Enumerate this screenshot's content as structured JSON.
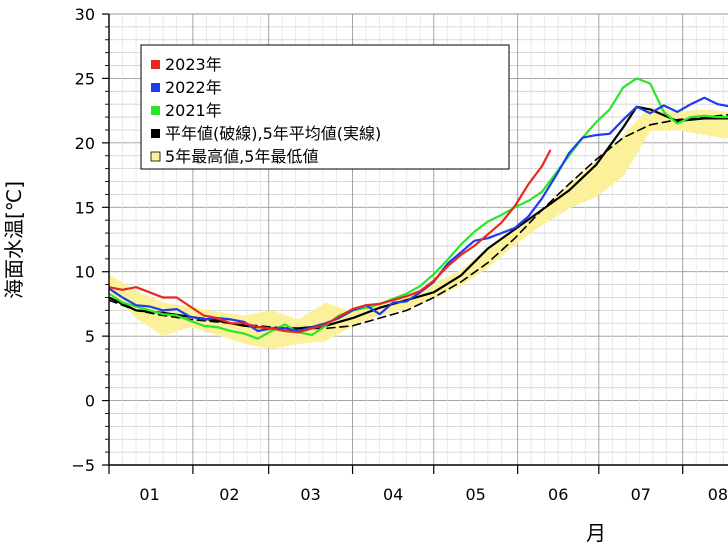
{
  "chart_data": {
    "type": "line",
    "xlabel": "月",
    "ylabel": "海面水温[℃]",
    "ylim": [
      -5,
      30
    ],
    "y_ticks": [
      "30",
      "25",
      "20",
      "15",
      "10",
      "5",
      "0",
      "−5"
    ],
    "x_ticks": [
      "01",
      "02",
      "03",
      "04",
      "05",
      "06",
      "07",
      "08"
    ],
    "legend": [
      {
        "label": "2023年",
        "color": "#e8281e"
      },
      {
        "label": "2022年",
        "color": "#1e3cf0"
      },
      {
        "label": "2021年",
        "color": "#28e628"
      },
      {
        "label": "平年値(破線),5年平均値(実線)",
        "color": "#000000"
      },
      {
        "label": "5年最高値,5年最低値",
        "color": "#fbf19a"
      }
    ],
    "band": {
      "name": "5年最高値,5年最低値",
      "x": [
        0,
        10,
        20,
        30,
        40,
        50,
        60,
        70,
        80,
        90,
        100,
        110,
        120,
        130,
        140,
        150,
        160,
        170,
        180,
        190,
        200,
        210,
        220,
        230
      ],
      "upper": [
        9.8,
        8.5,
        7.6,
        7.3,
        6.9,
        6.6,
        7.0,
        6.3,
        7.6,
        6.9,
        7.4,
        8.1,
        9.1,
        10.1,
        11.9,
        13.4,
        14.8,
        16.8,
        18.6,
        20.6,
        22.8,
        22.4,
        22.6,
        22.4
      ],
      "lower": [
        8.6,
        6.4,
        5.0,
        5.7,
        5.1,
        4.4,
        4.0,
        4.4,
        4.6,
        5.8,
        6.6,
        7.1,
        7.9,
        8.9,
        10.3,
        12.1,
        13.6,
        14.9,
        15.8,
        17.4,
        20.9,
        21.0,
        20.6,
        20.3
      ]
    },
    "series": [
      {
        "name": "2023年",
        "color": "#e8281e",
        "x": [
          0,
          5,
          10,
          15,
          20,
          25,
          30,
          35,
          40,
          45,
          50,
          55,
          60,
          65,
          70,
          75,
          80,
          85,
          90,
          95,
          100,
          105,
          110,
          115,
          120,
          125,
          130,
          135,
          140,
          145,
          150,
          155,
          160,
          163
        ],
        "y": [
          8.8,
          8.6,
          8.8,
          8.4,
          8.0,
          8.0,
          7.3,
          6.6,
          6.4,
          6.0,
          6.0,
          5.7,
          5.6,
          5.4,
          5.3,
          5.6,
          5.9,
          6.5,
          7.1,
          7.4,
          7.5,
          7.8,
          8.1,
          8.5,
          9.3,
          10.4,
          11.3,
          12.0,
          12.9,
          13.8,
          15.1,
          16.8,
          18.2,
          19.4
        ]
      },
      {
        "name": "2022年",
        "color": "#1e3cf0",
        "x": [
          0,
          5,
          10,
          15,
          20,
          25,
          30,
          35,
          40,
          45,
          50,
          55,
          60,
          65,
          70,
          75,
          80,
          85,
          90,
          95,
          100,
          105,
          110,
          115,
          120,
          125,
          130,
          135,
          140,
          145,
          150,
          155,
          160,
          165,
          170,
          175,
          180,
          185,
          190,
          195,
          200,
          205,
          210,
          215,
          220,
          225,
          230
        ],
        "y": [
          8.7,
          8.0,
          7.4,
          7.3,
          7.0,
          7.1,
          6.5,
          6.3,
          6.4,
          6.3,
          6.1,
          5.4,
          5.6,
          5.6,
          5.4,
          5.7,
          6.0,
          6.4,
          7.0,
          7.4,
          6.7,
          7.6,
          7.7,
          8.4,
          9.2,
          10.6,
          11.5,
          12.4,
          12.6,
          13.0,
          13.4,
          14.3,
          15.7,
          17.4,
          19.2,
          20.4,
          20.6,
          20.7,
          21.8,
          22.8,
          22.3,
          22.9,
          22.4,
          23.0,
          23.5,
          23.0,
          22.8
        ]
      },
      {
        "name": "2021年",
        "color": "#28e628",
        "x": [
          0,
          5,
          10,
          15,
          20,
          25,
          30,
          35,
          40,
          45,
          50,
          55,
          60,
          65,
          70,
          75,
          80,
          85,
          90,
          95,
          100,
          105,
          110,
          115,
          120,
          125,
          130,
          135,
          140,
          145,
          150,
          155,
          160,
          165,
          170,
          175,
          180,
          185,
          190,
          195,
          200,
          205,
          210,
          215,
          220,
          225,
          230
        ],
        "y": [
          8.3,
          7.6,
          7.3,
          7.0,
          6.7,
          6.6,
          6.2,
          5.8,
          5.7,
          5.4,
          5.2,
          4.8,
          5.4,
          5.9,
          5.3,
          5.1,
          5.8,
          6.6,
          7.0,
          7.2,
          7.5,
          7.9,
          8.3,
          8.9,
          9.8,
          10.9,
          12.1,
          13.1,
          13.9,
          14.4,
          15.0,
          15.5,
          16.2,
          17.6,
          19.0,
          20.4,
          21.6,
          22.6,
          24.3,
          25.0,
          24.6,
          22.4,
          21.5,
          22.0,
          22.1,
          22.0,
          22.0
        ]
      },
      {
        "name": "5年平均値",
        "color": "#000000",
        "dash": false,
        "x": [
          0,
          10,
          20,
          30,
          40,
          50,
          60,
          70,
          80,
          90,
          100,
          110,
          120,
          130,
          140,
          150,
          160,
          170,
          180,
          190,
          195,
          200,
          210,
          220,
          230
        ],
        "y": [
          8.0,
          7.0,
          6.8,
          6.5,
          6.2,
          5.8,
          5.6,
          5.6,
          5.8,
          6.4,
          7.2,
          7.8,
          8.4,
          9.7,
          11.8,
          13.3,
          14.8,
          16.3,
          18.3,
          21.2,
          22.8,
          22.6,
          21.7,
          21.9,
          21.9
        ]
      },
      {
        "name": "平年値",
        "color": "#000000",
        "dash": true,
        "x": [
          0,
          10,
          20,
          30,
          40,
          50,
          60,
          70,
          80,
          90,
          100,
          110,
          120,
          130,
          140,
          150,
          160,
          170,
          180,
          190,
          200,
          210,
          220,
          230
        ],
        "y": [
          7.8,
          7.0,
          6.6,
          6.3,
          6.1,
          5.9,
          5.7,
          5.6,
          5.6,
          5.8,
          6.4,
          7.0,
          8.0,
          9.2,
          10.7,
          12.6,
          14.8,
          16.8,
          18.7,
          20.4,
          21.4,
          21.8,
          22.0,
          22.2
        ]
      }
    ]
  }
}
